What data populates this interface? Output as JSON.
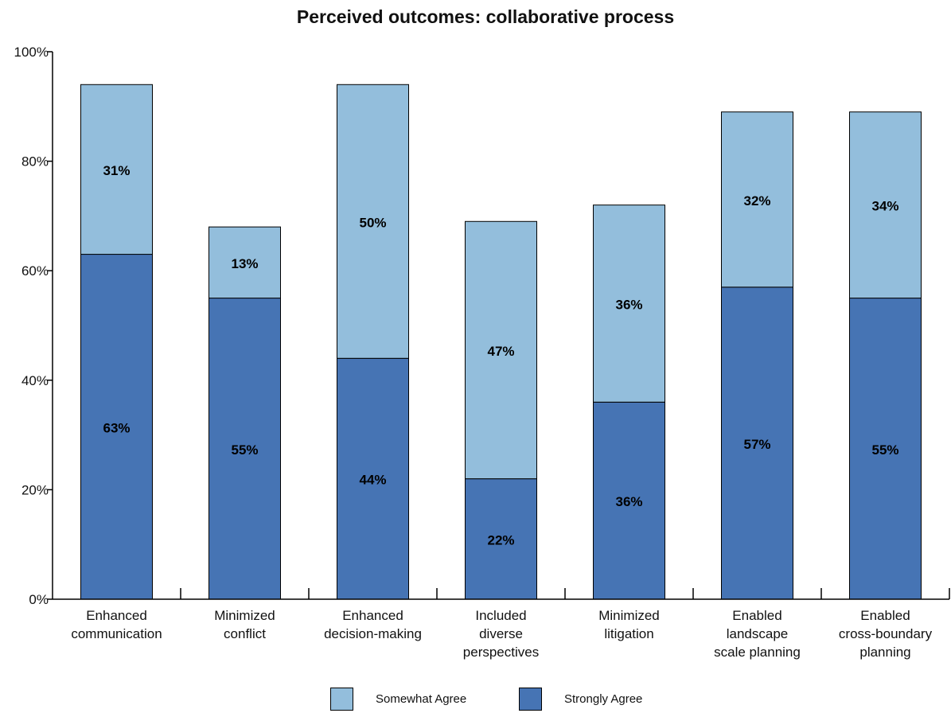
{
  "chart_data": {
    "type": "bar",
    "stacked": true,
    "title": "Perceived outcomes: collaborative process",
    "categories": [
      [
        "Enhanced",
        "communication"
      ],
      [
        "Minimized",
        "conflict"
      ],
      [
        "Enhanced",
        "decision-making"
      ],
      [
        "Included",
        "diverse",
        "perspectives"
      ],
      [
        "Minimized",
        "litigation"
      ],
      [
        "Enabled",
        "landscape",
        "scale planning"
      ],
      [
        "Enabled",
        "cross-boundary",
        "planning"
      ]
    ],
    "series": [
      {
        "name": "Strongly Agree",
        "color": "#4674b4",
        "values": [
          63,
          55,
          44,
          22,
          36,
          57,
          55
        ]
      },
      {
        "name": "Somewhat Agree",
        "color": "#93bedc",
        "values": [
          31,
          13,
          50,
          47,
          36,
          32,
          34
        ]
      }
    ],
    "ylim": [
      0,
      100
    ],
    "yticks": [
      0,
      20,
      40,
      60,
      80,
      100
    ],
    "ytick_labels": [
      "0%",
      "20%",
      "40%",
      "60%",
      "80%",
      "100%"
    ],
    "value_suffix": "%",
    "grid": false,
    "legend": {
      "position": "bottom-center",
      "order": [
        "Somewhat Agree",
        "Strongly Agree"
      ]
    }
  }
}
